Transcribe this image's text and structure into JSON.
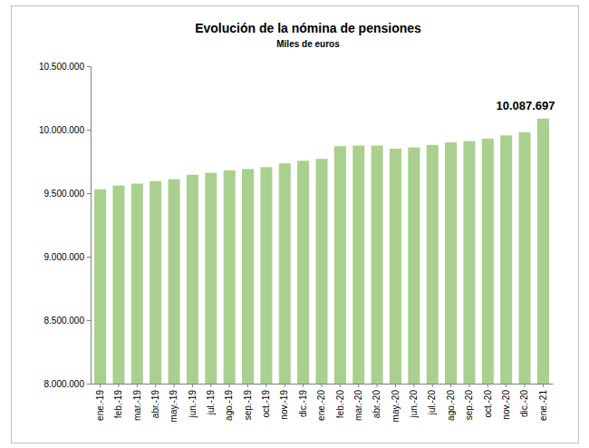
{
  "chart_data": {
    "type": "bar",
    "title": "Evolución de la nómina de pensiones",
    "subtitle": "Miles de euros",
    "categories": [
      "ene.-19",
      "feb.-19",
      "mar.-19",
      "abr.-19",
      "may.-19",
      "jun.-19",
      "jul.-19",
      "ago.-19",
      "sep.-19",
      "oct.-19",
      "nov.-19",
      "dic.-19",
      "ene.-20",
      "feb.-20",
      "mar.-20",
      "abr.-20",
      "may.-20",
      "jun.-20",
      "jul.-20",
      "ago.-20",
      "sep.-20",
      "oct.-20",
      "nov.-20",
      "dic.-20",
      "ene.-21"
    ],
    "values": [
      9530000,
      9560000,
      9575000,
      9595000,
      9610000,
      9645000,
      9660000,
      9680000,
      9690000,
      9705000,
      9735000,
      9755000,
      9770000,
      9870000,
      9875000,
      9875000,
      9850000,
      9860000,
      9880000,
      9900000,
      9910000,
      9930000,
      9955000,
      9980000,
      10087697
    ],
    "value_labels": [
      null,
      null,
      null,
      null,
      null,
      null,
      null,
      null,
      null,
      null,
      null,
      null,
      null,
      null,
      null,
      null,
      null,
      null,
      null,
      null,
      null,
      null,
      null,
      null,
      "10.087.697"
    ],
    "data_labels": true,
    "color": "#a9d08e",
    "ylim": [
      8000000,
      10500000
    ],
    "yticks": [
      {
        "value": 8000000,
        "label": "8.000.000"
      },
      {
        "value": 8500000,
        "label": "8.500.000"
      },
      {
        "value": 9000000,
        "label": "9.000.000"
      },
      {
        "value": 9500000,
        "label": "9.500.000"
      },
      {
        "value": 10000000,
        "label": "10.000.000"
      },
      {
        "value": 10500000,
        "label": "10.500.000"
      }
    ],
    "grid": false
  }
}
